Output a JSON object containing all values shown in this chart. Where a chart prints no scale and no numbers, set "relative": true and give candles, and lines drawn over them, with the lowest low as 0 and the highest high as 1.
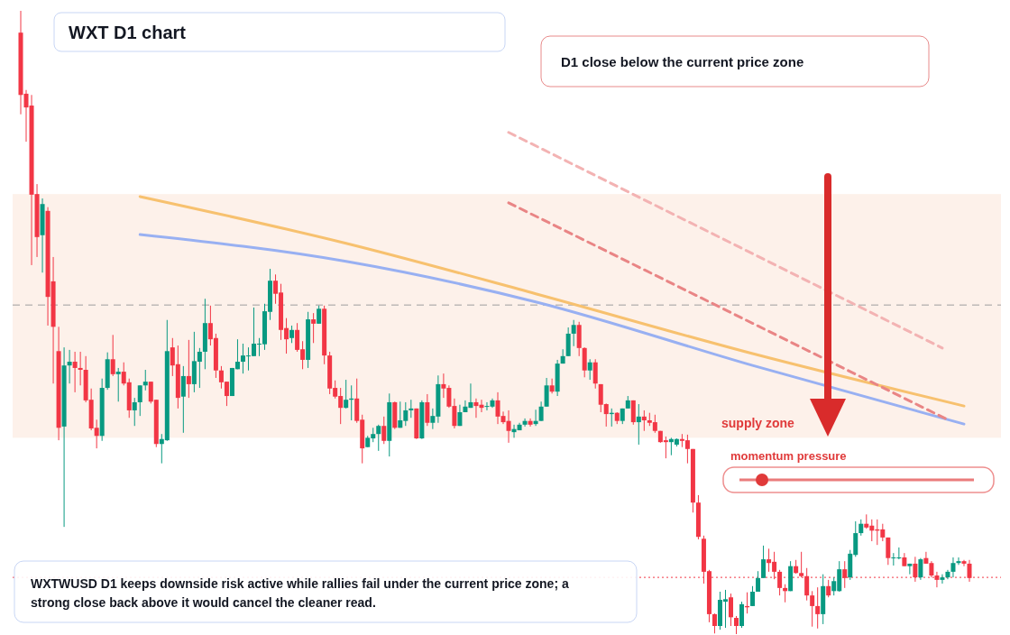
{
  "chart_data": {
    "type": "candlestick",
    "title": "WXT D1 chart",
    "relative": true,
    "categories": [
      null,
      null,
      null,
      null,
      null,
      null,
      null,
      null,
      null,
      null,
      null,
      null,
      null,
      null,
      null,
      null,
      null,
      null,
      null,
      null,
      null,
      null,
      null,
      null,
      null,
      null,
      null,
      null,
      null,
      null,
      null,
      null,
      null,
      null,
      null,
      null,
      null,
      null,
      null,
      null,
      null,
      null,
      null,
      null,
      null,
      null,
      null,
      null,
      null,
      null,
      null,
      null,
      null,
      null,
      null,
      null,
      null,
      null,
      null,
      null,
      null,
      null,
      null,
      null,
      null,
      null,
      null,
      null,
      null,
      null,
      null,
      null,
      null,
      null,
      null,
      null,
      null,
      null,
      null,
      null,
      null,
      null,
      null,
      null,
      null,
      null,
      null,
      null,
      null,
      null,
      null,
      null,
      null,
      null,
      null,
      null,
      null,
      null,
      null,
      null,
      null,
      null,
      null,
      null,
      null,
      null,
      null,
      null,
      null,
      null,
      null,
      null,
      null,
      null,
      null,
      null,
      null,
      null,
      null,
      null,
      null,
      null,
      null,
      null,
      null,
      null,
      null,
      null,
      null,
      null,
      null,
      null,
      null,
      null,
      null,
      null,
      null,
      null,
      null,
      null,
      null,
      null,
      null,
      null,
      null,
      null,
      null,
      null,
      null,
      null,
      null,
      null,
      null,
      null,
      null,
      null,
      null,
      null,
      null,
      null,
      null,
      null,
      null,
      null,
      null,
      null,
      null,
      null,
      null,
      null,
      null,
      null,
      null,
      null,
      null,
      null
    ],
    "ohlc": [
      [
        0.965,
        1,
        0.834,
        0.865
      ],
      [
        0.867,
        0.873,
        0.79,
        0.845
      ],
      [
        0.848,
        0.865,
        0.592,
        0.705
      ],
      [
        0.706,
        0.722,
        0.605,
        0.637
      ],
      [
        0.64,
        0.699,
        0.58,
        0.69
      ],
      [
        0.679,
        0.685,
        0.495,
        0.541
      ],
      [
        0.566,
        0.605,
        0.402,
        0.493
      ],
      [
        0.454,
        0.493,
        0.311,
        0.331
      ],
      [
        0.333,
        0.46,
        0.172,
        0.431
      ],
      [
        0.431,
        0.456,
        0.402,
        0.437
      ],
      [
        0.437,
        0.453,
        0.388,
        0.427
      ],
      [
        0.427,
        0.453,
        0.399,
        0.424
      ],
      [
        0.424,
        0.446,
        0.372,
        0.375
      ],
      [
        0.376,
        0.394,
        0.327,
        0.33
      ],
      [
        0.331,
        0.344,
        0.298,
        0.318
      ],
      [
        0.318,
        0.41,
        0.31,
        0.395
      ],
      [
        0.395,
        0.452,
        0.392,
        0.441
      ],
      [
        0.441,
        0.48,
        0.414,
        0.417
      ],
      [
        0.417,
        0.427,
        0.373,
        0.421
      ],
      [
        0.421,
        0.436,
        0.399,
        0.402
      ],
      [
        0.404,
        0.41,
        0.347,
        0.359
      ],
      [
        0.359,
        0.379,
        0.334,
        0.372
      ],
      [
        0.372,
        0.399,
        0.35,
        0.399
      ],
      [
        0.399,
        0.424,
        0.391,
        0.405
      ],
      [
        0.405,
        0.405,
        0.37,
        0.373
      ],
      [
        0.376,
        0.376,
        0.3,
        0.305
      ],
      [
        0.305,
        0.321,
        0.274,
        0.313
      ],
      [
        0.311,
        0.504,
        0.31,
        0.454
      ],
      [
        0.46,
        0.475,
        0.414,
        0.431
      ],
      [
        0.433,
        0.463,
        0.362,
        0.379
      ],
      [
        0.381,
        0.43,
        0.323,
        0.414
      ],
      [
        0.414,
        0.472,
        0.379,
        0.401
      ],
      [
        0.401,
        0.485,
        0.388,
        0.438
      ],
      [
        0.437,
        0.459,
        0.395,
        0.453
      ],
      [
        0.453,
        0.538,
        0.425,
        0.499
      ],
      [
        0.499,
        0.527,
        0.463,
        0.473
      ],
      [
        0.475,
        0.482,
        0.411,
        0.423
      ],
      [
        0.423,
        0.43,
        0.394,
        0.404
      ],
      [
        0.405,
        0.405,
        0.366,
        0.382
      ],
      [
        0.382,
        0.427,
        0.382,
        0.427
      ],
      [
        0.425,
        0.473,
        0.425,
        0.437
      ],
      [
        0.437,
        0.466,
        0.418,
        0.447
      ],
      [
        0.446,
        0.46,
        0.423,
        0.447
      ],
      [
        0.446,
        0.524,
        0.446,
        0.466
      ],
      [
        0.465,
        0.475,
        0.446,
        0.466
      ],
      [
        0.465,
        0.53,
        0.456,
        0.518
      ],
      [
        0.517,
        0.586,
        0.504,
        0.567
      ],
      [
        0.567,
        0.577,
        0.53,
        0.546
      ],
      [
        0.548,
        0.562,
        0.472,
        0.488
      ],
      [
        0.491,
        0.507,
        0.45,
        0.473
      ],
      [
        0.475,
        0.495,
        0.467,
        0.488
      ],
      [
        0.488,
        0.499,
        0.453,
        0.456
      ],
      [
        0.457,
        0.47,
        0.425,
        0.44
      ],
      [
        0.44,
        0.517,
        0.427,
        0.505
      ],
      [
        0.505,
        0.515,
        0.467,
        0.498
      ],
      [
        0.498,
        0.527,
        0.498,
        0.522
      ],
      [
        0.522,
        0.527,
        0.433,
        0.447
      ],
      [
        0.447,
        0.453,
        0.385,
        0.394
      ],
      [
        0.395,
        0.407,
        0.378,
        0.381
      ],
      [
        0.382,
        0.395,
        0.337,
        0.363
      ],
      [
        0.363,
        0.408,
        0.362,
        0.376
      ],
      [
        0.376,
        0.399,
        0.343,
        0.378
      ],
      [
        0.378,
        0.41,
        0.339,
        0.342
      ],
      [
        0.344,
        0.352,
        0.274,
        0.298
      ],
      [
        0.3,
        0.318,
        0.3,
        0.315
      ],
      [
        0.314,
        0.331,
        0.308,
        0.321
      ],
      [
        0.321,
        0.336,
        0.294,
        0.334
      ],
      [
        0.334,
        0.349,
        0.305,
        0.31
      ],
      [
        0.31,
        0.386,
        0.285,
        0.372
      ],
      [
        0.372,
        0.373,
        0.329,
        0.331
      ],
      [
        0.331,
        0.373,
        0.331,
        0.343
      ],
      [
        0.342,
        0.372,
        0.334,
        0.359
      ],
      [
        0.359,
        0.376,
        0.347,
        0.362
      ],
      [
        0.362,
        0.362,
        0.313,
        0.314
      ],
      [
        0.314,
        0.375,
        0.313,
        0.372
      ],
      [
        0.372,
        0.385,
        0.334,
        0.339
      ],
      [
        0.339,
        0.362,
        0.329,
        0.35
      ],
      [
        0.349,
        0.415,
        0.339,
        0.401
      ],
      [
        0.401,
        0.418,
        0.379,
        0.394
      ],
      [
        0.395,
        0.399,
        0.363,
        0.365
      ],
      [
        0.366,
        0.378,
        0.33,
        0.334
      ],
      [
        0.334,
        0.368,
        0.334,
        0.356
      ],
      [
        0.356,
        0.375,
        0.356,
        0.365
      ],
      [
        0.363,
        0.402,
        0.363,
        0.372
      ],
      [
        0.372,
        0.378,
        0.347,
        0.366
      ],
      [
        0.368,
        0.376,
        0.356,
        0.363
      ],
      [
        0.365,
        0.372,
        0.359,
        0.366
      ],
      [
        0.365,
        0.378,
        0.363,
        0.375
      ],
      [
        0.375,
        0.388,
        0.337,
        0.349
      ],
      [
        0.35,
        0.357,
        0.337,
        0.34
      ],
      [
        0.342,
        0.359,
        0.307,
        0.326
      ],
      [
        0.324,
        0.336,
        0.315,
        0.329
      ],
      [
        0.327,
        0.339,
        0.327,
        0.336
      ],
      [
        0.336,
        0.346,
        0.333,
        0.342
      ],
      [
        0.342,
        0.346,
        0.333,
        0.336
      ],
      [
        0.337,
        0.36,
        0.334,
        0.342
      ],
      [
        0.342,
        0.373,
        0.342,
        0.365
      ],
      [
        0.365,
        0.411,
        0.365,
        0.399
      ],
      [
        0.399,
        0.41,
        0.386,
        0.389
      ],
      [
        0.389,
        0.44,
        0.382,
        0.434
      ],
      [
        0.434,
        0.457,
        0.434,
        0.446
      ],
      [
        0.446,
        0.492,
        0.446,
        0.482
      ],
      [
        0.482,
        0.504,
        0.462,
        0.496
      ],
      [
        0.496,
        0.501,
        0.446,
        0.459
      ],
      [
        0.459,
        0.46,
        0.412,
        0.423
      ],
      [
        0.423,
        0.441,
        0.408,
        0.436
      ],
      [
        0.436,
        0.441,
        0.394,
        0.402
      ],
      [
        0.401,
        0.401,
        0.356,
        0.368
      ],
      [
        0.369,
        0.37,
        0.333,
        0.353
      ],
      [
        0.353,
        0.362,
        0.333,
        0.355
      ],
      [
        0.355,
        0.356,
        0.337,
        0.342
      ],
      [
        0.342,
        0.362,
        0.337,
        0.362
      ],
      [
        0.362,
        0.382,
        0.362,
        0.375
      ],
      [
        0.375,
        0.375,
        0.336,
        0.34
      ],
      [
        0.34,
        0.369,
        0.304,
        0.349
      ],
      [
        0.349,
        0.359,
        0.326,
        0.343
      ],
      [
        0.343,
        0.355,
        0.334,
        0.339
      ],
      [
        0.34,
        0.352,
        0.323,
        0.326
      ],
      [
        0.326,
        0.326,
        0.307,
        0.308
      ],
      [
        0.311,
        0.317,
        0.282,
        0.308
      ],
      [
        0.308,
        0.315,
        0.287,
        0.313
      ],
      [
        0.304,
        0.314,
        0.301,
        0.313
      ],
      [
        0.313,
        0.321,
        0.3,
        0.31
      ],
      [
        0.311,
        0.32,
        0.274,
        0.297
      ],
      [
        0.297,
        0.297,
        0.195,
        0.211
      ],
      [
        0.211,
        0.223,
        0.152,
        0.156
      ],
      [
        0.153,
        0.158,
        0.081,
        0.1
      ],
      [
        0.101,
        0.103,
        0.019,
        0.032
      ],
      [
        0.032,
        0.033,
        0.001,
        0.013
      ],
      [
        0.013,
        0.068,
        0.007,
        0.055
      ],
      [
        0.052,
        0.071,
        0.01,
        0.056
      ],
      [
        0.059,
        0.065,
        0.013,
        0.027
      ],
      [
        0.026,
        0.029,
        0,
        0.013
      ],
      [
        0.013,
        0.052,
        0.01,
        0.048
      ],
      [
        0.045,
        0.067,
        0.033,
        0.043
      ],
      [
        0.045,
        0.077,
        0.045,
        0.068
      ],
      [
        0.068,
        0.101,
        0.068,
        0.09
      ],
      [
        0.09,
        0.142,
        0.09,
        0.12
      ],
      [
        0.12,
        0.137,
        0.1,
        0.114
      ],
      [
        0.116,
        0.132,
        0.088,
        0.1
      ],
      [
        0.1,
        0.103,
        0.062,
        0.074
      ],
      [
        0.074,
        0.08,
        0.051,
        0.069
      ],
      [
        0.069,
        0.117,
        0.069,
        0.109
      ],
      [
        0.109,
        0.119,
        0.097,
        0.098
      ],
      [
        0.098,
        0.132,
        0.091,
        0.093
      ],
      [
        0.093,
        0.106,
        0.054,
        0.062
      ],
      [
        0.062,
        0.069,
        0.012,
        0.045
      ],
      [
        0.045,
        0.075,
        0.009,
        0.032
      ],
      [
        0.032,
        0.096,
        0.016,
        0.077
      ],
      [
        0.077,
        0.087,
        0.059,
        0.062
      ],
      [
        0.069,
        0.091,
        0.062,
        0.085
      ],
      [
        0.069,
        0.117,
        0.068,
        0.104
      ],
      [
        0.104,
        0.117,
        0.074,
        0.09
      ],
      [
        0.091,
        0.135,
        0.087,
        0.129
      ],
      [
        0.127,
        0.181,
        0.124,
        0.162
      ],
      [
        0.162,
        0.184,
        0.158,
        0.177
      ],
      [
        0.177,
        0.192,
        0.169,
        0.171
      ],
      [
        0.174,
        0.184,
        0.149,
        0.166
      ],
      [
        0.168,
        0.184,
        0.143,
        0.166
      ],
      [
        0.168,
        0.177,
        0.149,
        0.155
      ],
      [
        0.155,
        0.155,
        0.111,
        0.122
      ],
      [
        0.122,
        0.13,
        0.11,
        0.123
      ],
      [
        0.122,
        0.139,
        0.12,
        0.123
      ],
      [
        0.123,
        0.13,
        0.109,
        0.109
      ],
      [
        0.109,
        0.113,
        0.096,
        0.113
      ],
      [
        0.113,
        0.124,
        0.084,
        0.091
      ],
      [
        0.091,
        0.122,
        0.087,
        0.12
      ],
      [
        0.122,
        0.132,
        0.113,
        0.113
      ],
      [
        0.114,
        0.117,
        0.091,
        0.094
      ],
      [
        0.094,
        0.1,
        0.075,
        0.087
      ],
      [
        0.087,
        0.096,
        0.081,
        0.091
      ],
      [
        0.091,
        0.103,
        0.088,
        0.1
      ],
      [
        0.1,
        0.123,
        0.091,
        0.114
      ],
      [
        0.114,
        0.123,
        0.111,
        0.117
      ],
      [
        0.117,
        0.119,
        0.109,
        0.113
      ],
      [
        0.113,
        0.119,
        0.084,
        0.09
      ]
    ],
    "colors": [
      "#f23645",
      "#f23645",
      "#f23645",
      "#f23645",
      "#089981",
      "#f23645",
      "#f23645",
      "#f23645",
      "#089981",
      "#089981",
      "#f23645",
      "#f23645",
      "#f23645",
      "#f23645",
      "#f23645",
      "#089981",
      "#089981",
      "#f23645",
      "#089981",
      "#f23645",
      "#f23645",
      "#089981",
      "#089981",
      "#089981",
      "#f23645",
      "#f23645",
      "#089981",
      "#089981",
      "#f23645",
      "#f23645",
      "#089981",
      "#f23645",
      "#089981",
      "#089981",
      "#089981",
      "#f23645",
      "#f23645",
      "#f23645",
      "#f23645",
      "#089981",
      "#089981",
      "#089981",
      "#089981",
      "#089981",
      "#089981",
      "#089981",
      "#089981",
      "#f23645",
      "#f23645",
      "#f23645",
      "#089981",
      "#f23645",
      "#f23645",
      "#089981",
      "#f23645",
      "#089981",
      "#f23645",
      "#f23645",
      "#f23645",
      "#f23645",
      "#089981",
      "#089981",
      "#f23645",
      "#f23645",
      "#089981",
      "#089981",
      "#089981",
      "#f23645",
      "#089981",
      "#f23645",
      "#089981",
      "#089981",
      "#089981",
      "#f23645",
      "#089981",
      "#f23645",
      "#089981",
      "#089981",
      "#f23645",
      "#f23645",
      "#f23645",
      "#089981",
      "#089981",
      "#089981",
      "#f23645",
      "#f23645",
      "#089981",
      "#089981",
      "#f23645",
      "#f23645",
      "#f23645",
      "#089981",
      "#089981",
      "#089981",
      "#f23645",
      "#089981",
      "#089981",
      "#089981",
      "#f23645",
      "#089981",
      "#089981",
      "#089981",
      "#089981",
      "#f23645",
      "#f23645",
      "#089981",
      "#f23645",
      "#f23645",
      "#f23645",
      "#089981",
      "#f23645",
      "#089981",
      "#089981",
      "#f23645",
      "#089981",
      "#f23645",
      "#f23645",
      "#f23645",
      "#f23645",
      "#f23645",
      "#089981",
      "#089981",
      "#f23645",
      "#f23645",
      "#f23645",
      "#f23645",
      "#f23645",
      "#f23645",
      "#f23645",
      "#089981",
      "#089981",
      "#f23645",
      "#f23645",
      "#089981",
      "#f23645",
      "#089981",
      "#089981",
      "#089981",
      "#f23645",
      "#f23645",
      "#f23645",
      "#f23645",
      "#089981",
      "#f23645",
      "#f23645",
      "#f23645",
      "#f23645",
      "#f23645",
      "#089981",
      "#f23645",
      "#089981",
      "#089981",
      "#f23645",
      "#089981",
      "#089981",
      "#089981",
      "#f23645",
      "#f23645",
      "#f23645",
      "#f23645",
      "#f23645",
      "#089981",
      "#089981",
      "#f23645",
      "#089981",
      "#f23645",
      "#089981",
      "#f23645",
      "#f23645",
      "#f23645",
      "#089981",
      "#089981",
      "#089981",
      "#089981",
      "#f23645",
      "#f23645"
    ],
    "series": [
      {
        "type": "line",
        "color": "#f7c16f",
        "line_style": "solid",
        "values": [
          null,
          null,
          null,
          null,
          null,
          null,
          null,
          null,
          null,
          null,
          null,
          null,
          null,
          null,
          null,
          null,
          null,
          null,
          null,
          null,
          null,
          null,
          0.702,
          null,
          null,
          null,
          null,
          null,
          null,
          null,
          null,
          null,
          null,
          null,
          null,
          null,
          null,
          null,
          null,
          null,
          null,
          null,
          null,
          null,
          null,
          null,
          null,
          null,
          null,
          null,
          null,
          null,
          null,
          null,
          null,
          null,
          null,
          null,
          null,
          null,
          0.627,
          null,
          null,
          null,
          null,
          null,
          null,
          null,
          null,
          null,
          null,
          null,
          null,
          null,
          null,
          null,
          null,
          null,
          null,
          null,
          null,
          null,
          null,
          null,
          null,
          null,
          null,
          null,
          null,
          null,
          null,
          null,
          null,
          null,
          null,
          0.546,
          null,
          null,
          null,
          null,
          null,
          null,
          null,
          null,
          null,
          null,
          null,
          null,
          null,
          null,
          null,
          null,
          null,
          null,
          null,
          null,
          null,
          null,
          null,
          null,
          null,
          null,
          null,
          null,
          null,
          null,
          null,
          null,
          null,
          null,
          null,
          null,
          null,
          null,
          null,
          0.45,
          null,
          null,
          null,
          null,
          null,
          null,
          null,
          null,
          null,
          null,
          null,
          null,
          null,
          null,
          null,
          null,
          null,
          null,
          null,
          null,
          null,
          null,
          null,
          null,
          null,
          null,
          null,
          null,
          null,
          null,
          null,
          null,
          null,
          null,
          null,
          null,
          null,
          null,
          0.366,
          null
        ]
      },
      {
        "type": "line",
        "color": "#98b0f2",
        "line_style": "solid",
        "values": [
          null,
          null,
          null,
          null,
          null,
          null,
          null,
          null,
          null,
          null,
          null,
          null,
          null,
          null,
          null,
          null,
          null,
          null,
          null,
          null,
          null,
          null,
          0.641,
          null,
          null,
          null,
          null,
          null,
          null,
          null,
          null,
          null,
          null,
          null,
          null,
          null,
          null,
          null,
          null,
          null,
          null,
          null,
          null,
          null,
          null,
          null,
          null,
          null,
          null,
          null,
          null,
          null,
          null,
          null,
          null,
          null,
          null,
          null,
          null,
          null,
          0.598,
          null,
          null,
          null,
          null,
          null,
          null,
          null,
          null,
          null,
          null,
          null,
          null,
          null,
          null,
          null,
          null,
          null,
          null,
          null,
          null,
          null,
          null,
          null,
          null,
          null,
          null,
          null,
          null,
          null,
          null,
          null,
          null,
          null,
          null,
          0.533,
          null,
          null,
          null,
          null,
          null,
          null,
          null,
          null,
          null,
          null,
          null,
          null,
          null,
          null,
          null,
          null,
          null,
          null,
          null,
          null,
          null,
          null,
          null,
          null,
          null,
          null,
          null,
          null,
          null,
          null,
          null,
          null,
          null,
          null,
          null,
          null,
          null,
          null,
          null,
          0.431,
          null,
          null,
          null,
          null,
          null,
          null,
          null,
          null,
          null,
          null,
          null,
          null,
          null,
          null,
          null,
          null,
          null,
          null,
          null,
          null,
          null,
          null,
          null,
          null,
          null,
          null,
          null,
          null,
          null,
          null,
          null,
          null,
          null,
          null,
          null,
          null,
          null,
          null,
          0.337,
          null
        ]
      },
      {
        "type": "line",
        "color": "#e98585",
        "line_style": "dashed",
        "values": [
          null,
          null,
          null,
          null,
          null,
          null,
          null,
          null,
          null,
          null,
          null,
          null,
          null,
          null,
          null,
          null,
          null,
          null,
          null,
          null,
          null,
          null,
          null,
          null,
          null,
          null,
          null,
          null,
          null,
          null,
          null,
          null,
          null,
          null,
          null,
          null,
          null,
          null,
          null,
          null,
          null,
          null,
          null,
          null,
          null,
          null,
          null,
          null,
          null,
          null,
          null,
          null,
          null,
          null,
          null,
          null,
          null,
          null,
          null,
          null,
          null,
          null,
          null,
          null,
          null,
          null,
          null,
          null,
          null,
          null,
          null,
          null,
          null,
          null,
          null,
          null,
          null,
          null,
          null,
          null,
          null,
          null,
          null,
          null,
          null,
          null,
          null,
          null,
          null,
          null,
          0.692,
          null,
          null,
          null,
          null,
          null,
          null,
          null,
          null,
          null,
          null,
          null,
          null,
          null,
          null,
          null,
          null,
          null,
          null,
          null,
          null,
          null,
          null,
          null,
          null,
          null,
          null,
          null,
          null,
          null,
          null,
          null,
          null,
          null,
          null,
          null,
          null,
          null,
          null,
          null,
          null,
          null,
          null,
          null,
          null,
          null,
          null,
          null,
          null,
          null,
          null,
          null,
          null,
          null,
          null,
          null,
          null,
          null,
          null,
          null,
          null,
          null,
          null,
          null,
          null,
          null,
          null,
          null,
          null,
          null,
          null,
          null,
          null,
          null,
          null,
          null,
          null,
          null,
          null,
          null,
          null,
          0.344,
          null,
          null,
          null,
          null
        ]
      },
      {
        "type": "line",
        "color": "#f3b3b3",
        "line_style": "dashed",
        "values": [
          null,
          null,
          null,
          null,
          null,
          null,
          null,
          null,
          null,
          null,
          null,
          null,
          null,
          null,
          null,
          null,
          null,
          null,
          null,
          null,
          null,
          null,
          null,
          null,
          null,
          null,
          null,
          null,
          null,
          null,
          null,
          null,
          null,
          null,
          null,
          null,
          null,
          null,
          null,
          null,
          null,
          null,
          null,
          null,
          null,
          null,
          null,
          null,
          null,
          null,
          null,
          null,
          null,
          null,
          null,
          null,
          null,
          null,
          null,
          null,
          null,
          null,
          null,
          null,
          null,
          null,
          null,
          null,
          null,
          null,
          null,
          null,
          null,
          null,
          null,
          null,
          null,
          null,
          null,
          null,
          null,
          null,
          null,
          null,
          null,
          null,
          null,
          null,
          null,
          null,
          0.805,
          null,
          null,
          null,
          null,
          null,
          null,
          null,
          null,
          null,
          null,
          null,
          null,
          null,
          null,
          null,
          null,
          null,
          null,
          null,
          null,
          null,
          null,
          null,
          null,
          null,
          null,
          null,
          null,
          null,
          null,
          null,
          null,
          null,
          null,
          null,
          null,
          null,
          null,
          null,
          null,
          null,
          null,
          null,
          null,
          null,
          null,
          null,
          null,
          null,
          null,
          null,
          null,
          null,
          null,
          null,
          null,
          null,
          null,
          null,
          null,
          null,
          null,
          null,
          null,
          null,
          null,
          null,
          null,
          null,
          null,
          null,
          null,
          null,
          null,
          null,
          null,
          null,
          null,
          null,
          0.459,
          null,
          null,
          null,
          null,
          null
        ]
      }
    ],
    "ref_lines": [
      {
        "axis": "y",
        "value": 0.528,
        "color": "#9e9e9e",
        "line_style": "dashed"
      },
      {
        "axis": "y",
        "value": 0.091,
        "color": "#f23645",
        "line_style": "dotted"
      }
    ],
    "bands": [
      {
        "axis": "y",
        "from": 0.315,
        "to": 0.706,
        "label": "supply zone",
        "color": "#fdf1ea"
      }
    ],
    "annotations": [
      "D1 close below the current price zone",
      "momentum pressure",
      "WXTWUSD D1 keeps downside risk active while rallies fail under the current price zone; a strong close back above it would cancel the cleaner read."
    ]
  }
}
